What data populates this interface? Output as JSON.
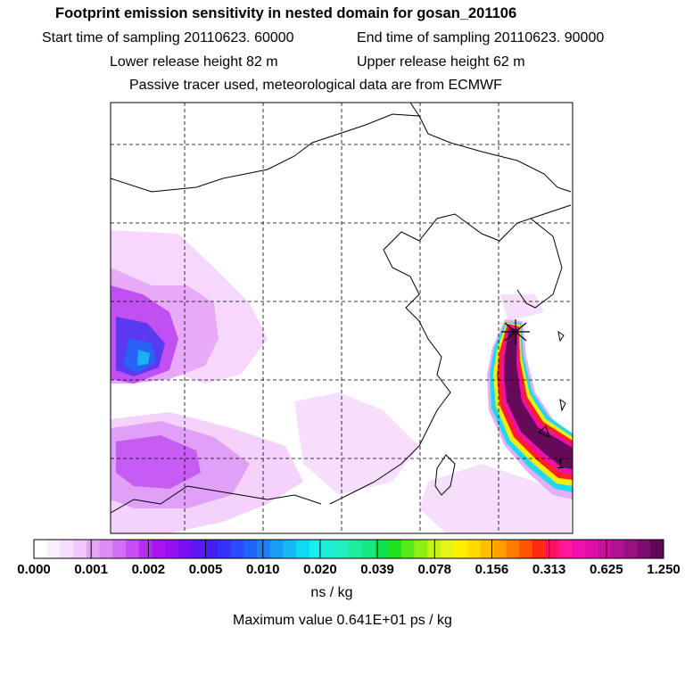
{
  "header": {
    "title": "Footprint emission sensitivity in nested domain for gosan_201106",
    "start": "Start time of sampling 20110623. 60000",
    "end": "End time of sampling 20110623. 90000",
    "lower": "Lower release height   82 m",
    "upper": "Upper release height   62 m",
    "note": "Passive tracer used, meteorological data are from ECMWF"
  },
  "colorbar": {
    "labels": [
      "0.000",
      "0.001",
      "0.002",
      "0.005",
      "0.010",
      "0.020",
      "0.039",
      "0.078",
      "0.156",
      "0.313",
      "0.625",
      "1.250"
    ],
    "colors": [
      "#ffffff",
      "#fbeefe",
      "#f7ddfd",
      "#f2c7fb",
      "#e6a6f8",
      "#dd8cf6",
      "#d36ff5",
      "#c64ef3",
      "#b82bf0",
      "#aa12ee",
      "#9310f0",
      "#7a10f2",
      "#5f14f4",
      "#4520f6",
      "#3532f8",
      "#2a4cf8",
      "#1e64f8",
      "#1a7ff8",
      "#189cf8",
      "#16b8f6",
      "#10d8f2",
      "#14f0ec",
      "#1ef0d6",
      "#22f0bc",
      "#1cec9e",
      "#18e680",
      "#10e050",
      "#20e020",
      "#58e818",
      "#90ee18",
      "#c4f218",
      "#e8f418",
      "#fcf000",
      "#ffdc00",
      "#ffc000",
      "#ffa000",
      "#ff7c00",
      "#ff5400",
      "#ff2a14",
      "#ff1060",
      "#ff1898",
      "#f010b0",
      "#dc10a8",
      "#c8109c",
      "#b01290",
      "#981080",
      "#7e0c6c",
      "#600a54"
    ],
    "unit": "ns / kg"
  },
  "max_value": "Maximum value  0.641E+01 ps / kg",
  "map": {
    "receptor_marker": "star-marker",
    "label_1": "1"
  }
}
